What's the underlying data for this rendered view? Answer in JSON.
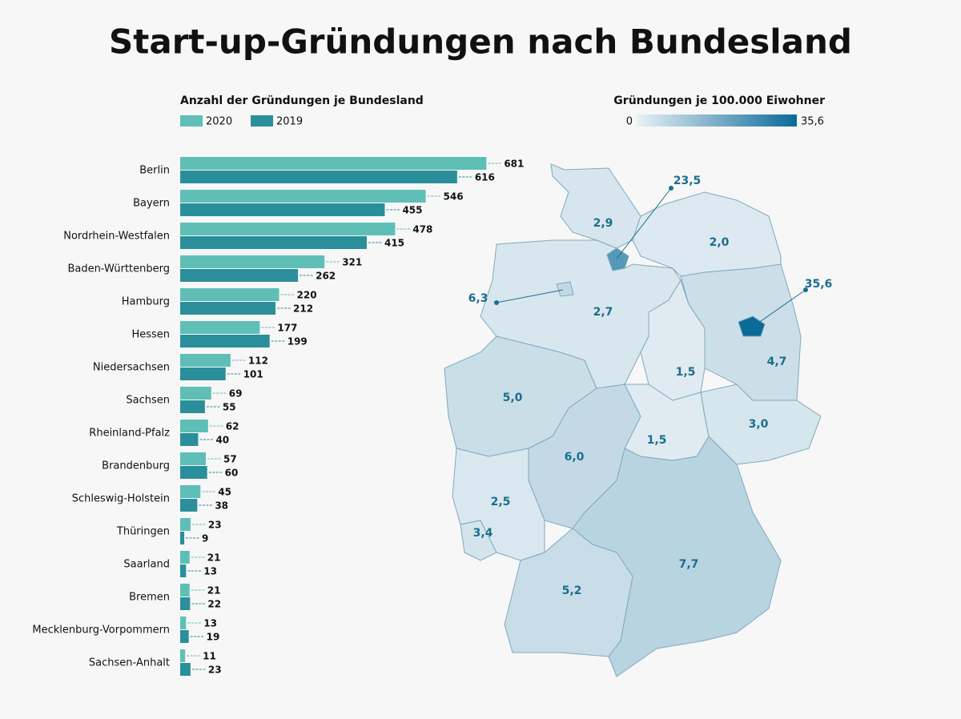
{
  "title": "Start-up-Gründungen nach Bundesland",
  "chart_data": [
    {
      "type": "bar",
      "orientation": "horizontal",
      "title": "Anzahl der Gründungen je Bundesland",
      "categories": [
        "Berlin",
        "Bayern",
        "Nordrhein-Westfalen",
        "Baden-Württenberg",
        "Hamburg",
        "Hessen",
        "Niedersachsen",
        "Sachsen",
        "Rheinland-Pfalz",
        "Brandenburg",
        "Schleswig-Holstein",
        "Thüringen",
        "Saarland",
        "Bremen",
        "Mecklenburg-Vorpommern",
        "Sachsen-Anhalt"
      ],
      "series": [
        {
          "name": "2020",
          "color": "#5fbfb6",
          "values": [
            681,
            546,
            478,
            321,
            220,
            177,
            112,
            69,
            62,
            57,
            45,
            23,
            21,
            21,
            13,
            11
          ]
        },
        {
          "name": "2019",
          "color": "#2a8f9b",
          "values": [
            616,
            455,
            415,
            262,
            212,
            199,
            101,
            55,
            40,
            60,
            38,
            9,
            13,
            22,
            19,
            23
          ]
        }
      ],
      "xlim": [
        0,
        700
      ]
    },
    {
      "type": "choropleth",
      "title": "Gründungen je 100.000 Eiwohner",
      "values": [
        35.6,
        7.7,
        5.0,
        5.2,
        23.5,
        6.0,
        2.7,
        3.0,
        2.5,
        4.7,
        2.9,
        1.5,
        3.4,
        6.3,
        2.0,
        1.5
      ],
      "value_labels": [
        "35,6",
        "7,7",
        "5,0",
        "5,2",
        "23,5",
        "6,0",
        "2,7",
        "3,0",
        "2,5",
        "4,7",
        "2,9",
        "1,5",
        "3,4",
        "6,3",
        "2,0",
        "1,5"
      ],
      "clim": [
        0,
        35.6
      ],
      "cticks": [
        0,
        {
          "value": 35.6,
          "label": "35,6"
        }
      ],
      "colors": [
        "#e9f1f5",
        "#0a6a9a"
      ]
    }
  ]
}
